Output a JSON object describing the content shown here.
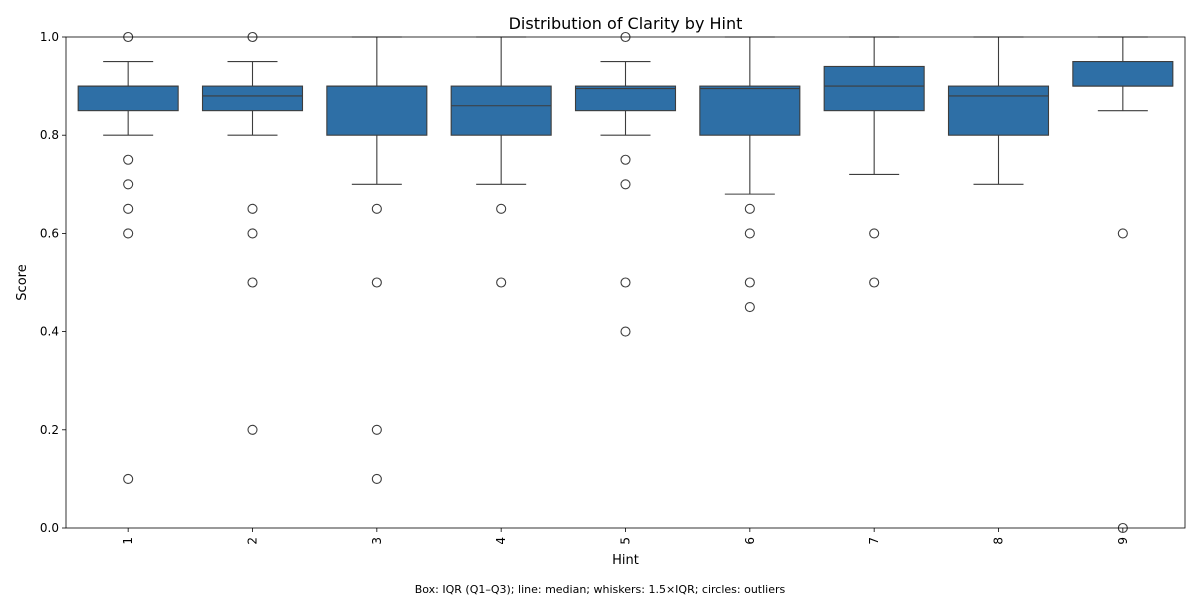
{
  "chart_data": {
    "type": "box",
    "title": "Distribution of Clarity by Hint",
    "xlabel": "Hint",
    "ylabel": "Score",
    "ylim": [
      0.0,
      1.0
    ],
    "yticks": [
      "0.0",
      "0.2",
      "0.4",
      "0.6",
      "0.8",
      "1.0"
    ],
    "grid": false,
    "box_color": "#2e6fa6",
    "categories": [
      "1",
      "2",
      "3",
      "4",
      "5",
      "6",
      "7",
      "8",
      "9"
    ],
    "boxes": [
      {
        "category": "1",
        "whisker_low": 0.8,
        "q1": 0.85,
        "median": 0.9,
        "q3": 0.9,
        "whisker_high": 0.95,
        "outliers": [
          1.0,
          0.75,
          0.7,
          0.65,
          0.6,
          0.1
        ]
      },
      {
        "category": "2",
        "whisker_low": 0.8,
        "q1": 0.85,
        "median": 0.88,
        "q3": 0.9,
        "whisker_high": 0.95,
        "outliers": [
          1.0,
          0.65,
          0.6,
          0.5,
          0.2
        ]
      },
      {
        "category": "3",
        "whisker_low": 0.7,
        "q1": 0.8,
        "median": 0.9,
        "q3": 0.9,
        "whisker_high": 1.0,
        "outliers": [
          0.65,
          0.5,
          0.2,
          0.1
        ]
      },
      {
        "category": "4",
        "whisker_low": 0.7,
        "q1": 0.8,
        "median": 0.86,
        "q3": 0.9,
        "whisker_high": 1.0,
        "outliers": [
          0.65,
          0.5
        ]
      },
      {
        "category": "5",
        "whisker_low": 0.8,
        "q1": 0.85,
        "median": 0.895,
        "q3": 0.9,
        "whisker_high": 0.95,
        "outliers": [
          1.0,
          0.75,
          0.7,
          0.5,
          0.4
        ]
      },
      {
        "category": "6",
        "whisker_low": 0.68,
        "q1": 0.8,
        "median": 0.895,
        "q3": 0.9,
        "whisker_high": 1.0,
        "outliers": [
          0.65,
          0.6,
          0.5,
          0.45
        ]
      },
      {
        "category": "7",
        "whisker_low": 0.72,
        "q1": 0.85,
        "median": 0.9,
        "q3": 0.94,
        "whisker_high": 1.0,
        "outliers": [
          0.6,
          0.5
        ]
      },
      {
        "category": "8",
        "whisker_low": 0.7,
        "q1": 0.8,
        "median": 0.88,
        "q3": 0.9,
        "whisker_high": 1.0,
        "outliers": []
      },
      {
        "category": "9",
        "whisker_low": 0.85,
        "q1": 0.9,
        "median": 0.9,
        "q3": 0.95,
        "whisker_high": 1.0,
        "outliers": [
          0.6,
          0.0
        ]
      }
    ],
    "caption": "Box: IQR (Q1–Q3); line: median; whiskers: 1.5×IQR; circles: outliers"
  }
}
